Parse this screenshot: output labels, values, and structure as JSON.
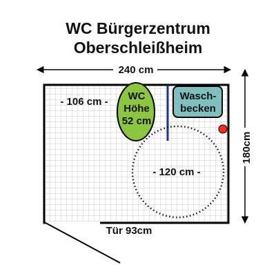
{
  "title": {
    "line1": "WC Bürgerzentrum",
    "line2": "Oberschleißheim"
  },
  "dimensions": {
    "width_label": "240 cm",
    "height_label": "180cm",
    "distance_wall_label": "- 106 cm -",
    "turning_circle_label": "- 120 cm -",
    "door_label": "Tür 93cm"
  },
  "fixtures": {
    "wc": {
      "line1": "WC",
      "line2": "Höhe",
      "line3": "52 cm",
      "color": "#8cc63f"
    },
    "sink": {
      "line1": "Wasch-",
      "line2": "becken",
      "color": "#7fbfc0"
    }
  },
  "colors": {
    "grid_line": "#c8c8c8",
    "wall": "#000000",
    "grab_bar": "#1a2f9c",
    "alarm": "#ff2a1a"
  }
}
